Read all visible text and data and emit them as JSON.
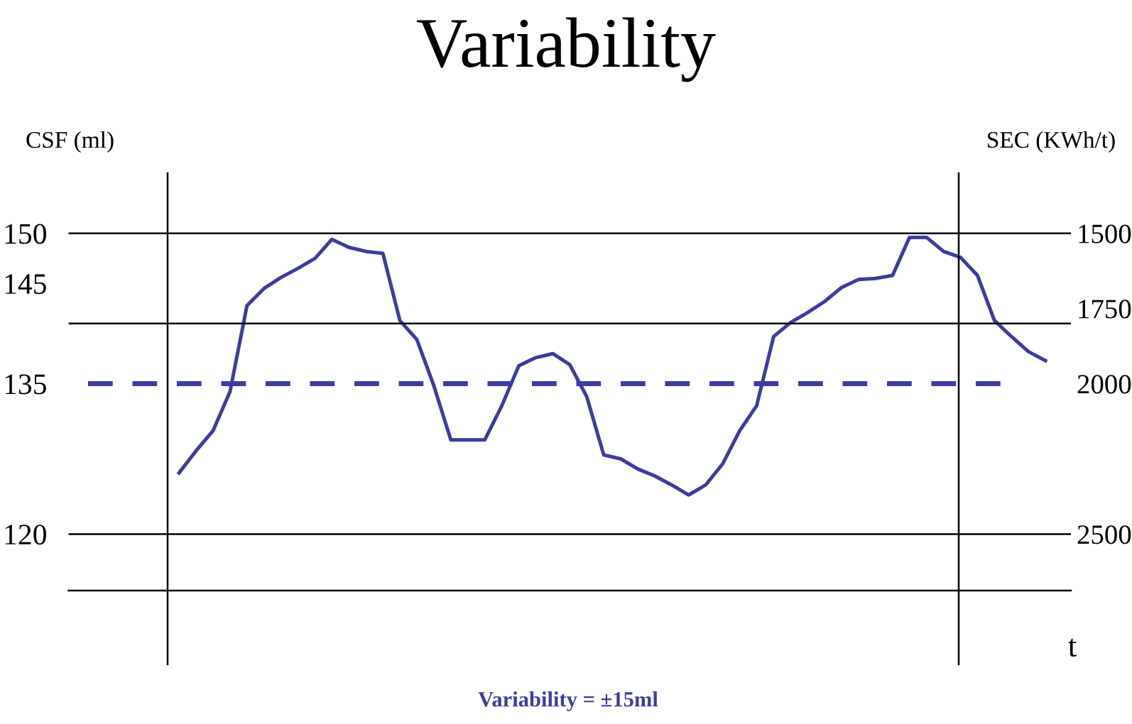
{
  "chart_data": {
    "type": "line",
    "title": "Variability",
    "xlabel": "t",
    "ylabel": "CSF (ml)",
    "y2label": "SEC (KWh/t)",
    "categories": [
      null,
      null,
      null,
      null,
      null,
      null,
      null,
      null,
      null,
      null,
      null,
      null,
      null,
      null,
      null,
      null,
      null,
      null,
      null,
      null,
      null,
      null,
      null,
      null,
      null,
      null,
      null,
      null,
      null,
      null,
      null,
      null,
      null,
      null,
      null,
      null,
      null,
      null,
      null,
      null,
      null,
      null,
      null,
      null,
      null,
      null,
      null,
      null,
      null,
      null,
      null,
      null,
      null,
      null,
      null,
      null,
      null,
      null,
      null
    ],
    "series": [
      {
        "color": "#3d3d9e",
        "values": [
          null,
          null,
          null,
          null,
          null,
          null,
          126.1,
          128.3,
          130.3,
          134.2,
          142.8,
          144.5,
          145.6,
          146.5,
          147.5,
          149.4,
          148.6,
          148.2,
          148.0,
          141.3,
          139.4,
          134.8,
          129.4,
          129.4,
          129.4,
          132.8,
          136.8,
          137.6,
          138.0,
          136.9,
          133.7,
          127.9,
          127.5,
          126.5,
          125.8,
          124.9,
          123.9,
          124.9,
          127.0,
          130.3,
          132.8,
          139.7,
          141.1,
          142.1,
          143.2,
          144.6,
          145.4,
          145.5,
          145.8,
          149.6,
          149.6,
          148.2,
          147.6,
          145.8,
          141.3,
          139.7,
          138.2,
          137.3,
          null
        ]
      }
    ],
    "ylim": [
      107,
      156
    ],
    "yticks": [
      150,
      145,
      135,
      120
    ],
    "y2lim": [
      2933,
      1300
    ],
    "y2ticks": [
      1500,
      1750,
      2000,
      2500
    ],
    "ref_lines": [
      {
        "axis": "y",
        "value": 150,
        "color": "#000000"
      },
      {
        "axis": "y",
        "value": 141,
        "color": "#000000"
      },
      {
        "axis": "y",
        "value": 120,
        "color": "#000000"
      },
      {
        "axis": "y",
        "value": 135,
        "color": "#3d3d9e",
        "line_style": "dashed"
      }
    ],
    "annotations": [
      "Variability = ±15ml"
    ],
    "grid": false,
    "marker": "none",
    "line_style": "solid"
  }
}
